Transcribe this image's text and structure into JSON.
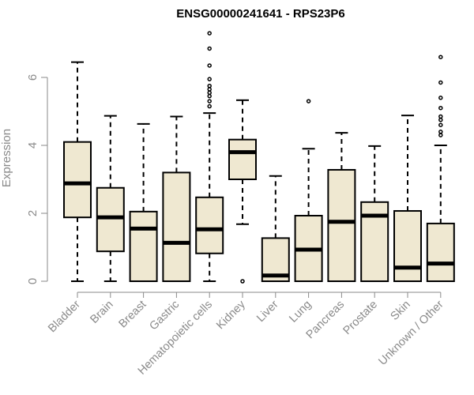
{
  "chart_data": {
    "type": "boxplot",
    "title": "ENSG00000241641 - RPS23P6",
    "ylabel": "Expression",
    "xlabel": "",
    "ylim": [
      0,
      7.4
    ],
    "yticks": [
      0,
      2,
      4,
      6
    ],
    "box_fill": "#efe8d1",
    "categories": [
      "Bladder",
      "Brain",
      "Breast",
      "Gastric",
      "Hematopoietic cells",
      "Kidney",
      "Liver",
      "Lung",
      "Pancreas",
      "Prostate",
      "Skin",
      "Unknown / Other"
    ],
    "boxes": [
      {
        "category": "Bladder",
        "min": 0,
        "q1": 1.88,
        "median": 2.88,
        "q3": 4.1,
        "max": 6.45,
        "outliers": []
      },
      {
        "category": "Brain",
        "min": 0,
        "q1": 0.88,
        "median": 1.88,
        "q3": 2.75,
        "max": 4.87,
        "outliers": []
      },
      {
        "category": "Breast",
        "min": 0,
        "q1": 0,
        "median": 1.55,
        "q3": 2.05,
        "max": 4.63,
        "outliers": []
      },
      {
        "category": "Gastric",
        "min": 0,
        "q1": 0,
        "median": 1.13,
        "q3": 3.2,
        "max": 4.85,
        "outliers": []
      },
      {
        "category": "Hematopoietic cells",
        "min": 0,
        "q1": 0.82,
        "median": 1.53,
        "q3": 2.47,
        "max": 4.95,
        "outliers": [
          5.15,
          5.3,
          5.45,
          5.55,
          5.65,
          5.75,
          5.95,
          6.35,
          6.85,
          7.3
        ]
      },
      {
        "category": "Kidney",
        "min": 1.68,
        "q1": 3.0,
        "median": 3.8,
        "q3": 4.17,
        "max": 5.33,
        "outliers": [
          0
        ]
      },
      {
        "category": "Liver",
        "min": 0,
        "q1": 0,
        "median": 0.17,
        "q3": 1.27,
        "max": 3.1,
        "outliers": []
      },
      {
        "category": "Lung",
        "min": 0,
        "q1": 0,
        "median": 0.93,
        "q3": 1.93,
        "max": 3.9,
        "outliers": [
          5.3
        ]
      },
      {
        "category": "Pancreas",
        "min": 0,
        "q1": 0,
        "median": 1.75,
        "q3": 3.28,
        "max": 4.37,
        "outliers": []
      },
      {
        "category": "Prostate",
        "min": 0,
        "q1": 0,
        "median": 1.93,
        "q3": 2.33,
        "max": 3.98,
        "outliers": []
      },
      {
        "category": "Skin",
        "min": 0,
        "q1": 0,
        "median": 0.4,
        "q3": 2.07,
        "max": 4.88,
        "outliers": []
      },
      {
        "category": "Unknown / Other",
        "min": 0,
        "q1": 0,
        "median": 0.52,
        "q3": 1.7,
        "max": 4.0,
        "outliers": [
          4.3,
          4.4,
          4.6,
          4.75,
          4.85,
          5.1,
          5.4,
          5.85,
          6.6
        ]
      }
    ]
  }
}
